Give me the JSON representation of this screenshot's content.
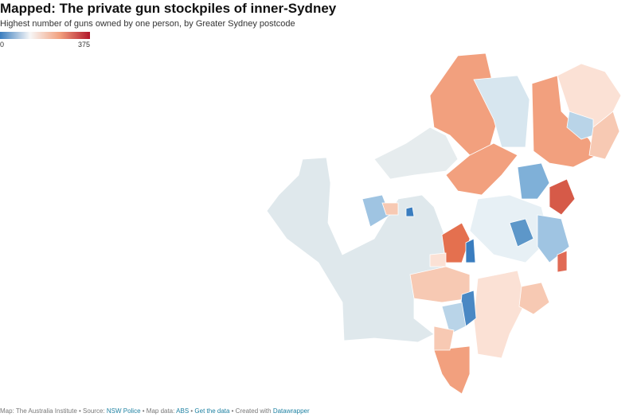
{
  "header": {
    "title": "Mapped: The private gun stockpiles of inner-Sydney",
    "subtitle": "Highest number of guns owned by one person, by Greater Sydney postcode"
  },
  "legend": {
    "min": 0,
    "max": 375,
    "colors": [
      "#3a7dbf",
      "#f7f7f7",
      "#f2a07e",
      "#b2182b"
    ]
  },
  "footer": {
    "parts": [
      {
        "text": "Map: The Australia Institute • Source: ",
        "link": false
      },
      {
        "text": "NSW Police",
        "link": true
      },
      {
        "text": " • Map data: ",
        "link": false
      },
      {
        "text": "ABS",
        "link": true
      },
      {
        "text": " • ",
        "link": false
      },
      {
        "text": "Get the data",
        "link": true
      },
      {
        "text": " • Created with ",
        "link": false
      },
      {
        "text": "Datawrapper",
        "link": true
      }
    ]
  }
}
